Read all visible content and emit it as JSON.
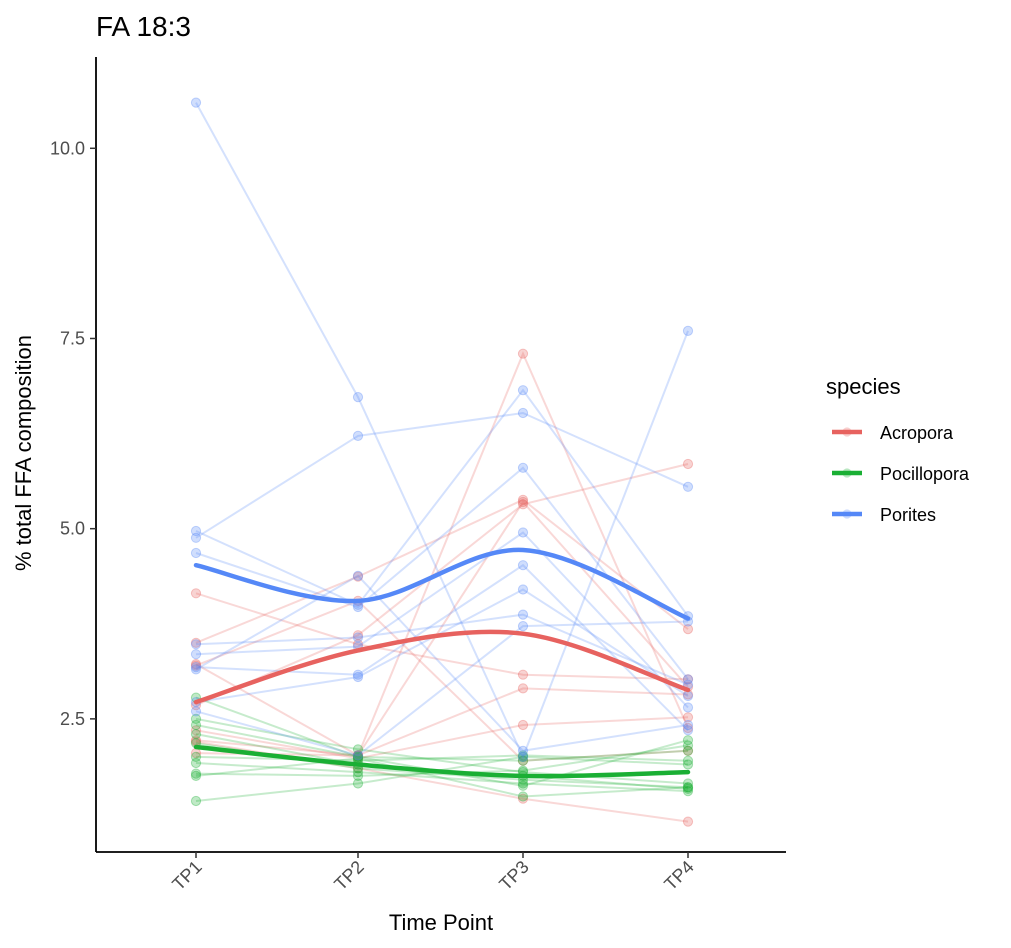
{
  "chart_data": {
    "type": "line",
    "title": "FA 18:3",
    "xlabel": "Time Point",
    "ylabel": "% total FFA composition",
    "categories": [
      "TP1",
      "TP2",
      "TP3",
      "TP4"
    ],
    "x_tick_labels": [
      "TP1",
      "TP2",
      "TP3",
      "TP4"
    ],
    "y_ticks": [
      2.5,
      5.0,
      7.5,
      10.0
    ],
    "y_tick_labels": [
      "2.5",
      "5.0",
      "7.5",
      "10.0"
    ],
    "ylim": [
      0.75,
      11.2
    ],
    "grid": false,
    "legend": {
      "title": "species",
      "position": "right"
    },
    "series": [
      {
        "name": "Acropora",
        "color": "#E7625F",
        "smooth": [
          2.72,
          3.4,
          3.62,
          2.88
        ],
        "individuals": [
          [
            3.22,
            2.02,
            5.35,
            2.92
          ],
          [
            3.5,
            4.37,
            5.38,
            3.68
          ],
          [
            4.15,
            3.48,
            3.08,
            3.02
          ],
          [
            2.22,
            2.02,
            2.9,
            2.82
          ],
          [
            2.05,
            2.02,
            7.3,
            2.38
          ],
          [
            2.35,
            1.98,
            2.42,
            2.52
          ],
          [
            3.2,
            4.05,
            1.95,
            2.08
          ],
          [
            2.2,
            1.85,
            1.45,
            1.15
          ],
          [
            2.68,
            3.6,
            5.32,
            5.85
          ]
        ]
      },
      {
        "name": "Pocillopora",
        "color": "#1AAF34",
        "smooth": [
          2.13,
          1.9,
          1.75,
          1.8
        ],
        "individuals": [
          [
            2.78,
            2.0,
            1.62,
            2.22
          ],
          [
            2.5,
            2.1,
            1.8,
            1.65
          ],
          [
            2.42,
            2.0,
            1.95,
            2.08
          ],
          [
            2.3,
            1.9,
            1.75,
            1.58
          ],
          [
            2.18,
            1.85,
            1.7,
            1.6
          ],
          [
            2.0,
            1.95,
            2.02,
            1.95
          ],
          [
            1.92,
            1.8,
            1.65,
            1.55
          ],
          [
            1.78,
            1.75,
            1.82,
            2.15
          ],
          [
            1.75,
            1.98,
            1.48,
            1.6
          ],
          [
            1.42,
            1.65,
            2.0,
            1.9
          ]
        ]
      },
      {
        "name": "Porites",
        "color": "#5588F7",
        "smooth": [
          4.52,
          4.05,
          4.72,
          3.82
        ],
        "individuals": [
          [
            10.6,
            6.73,
            2.0,
            7.6
          ],
          [
            4.97,
            4.0,
            6.82,
            3.85
          ],
          [
            4.88,
            6.22,
            6.52,
            5.55
          ],
          [
            4.68,
            3.97,
            5.8,
            3.02
          ],
          [
            3.48,
            3.57,
            3.87,
            2.95
          ],
          [
            3.35,
            3.45,
            4.95,
            2.65
          ],
          [
            3.18,
            3.08,
            4.52,
            2.35
          ],
          [
            2.72,
            3.05,
            4.2,
            2.8
          ],
          [
            2.6,
            2.02,
            3.72,
            3.78
          ],
          [
            3.15,
            4.38,
            2.08,
            2.42
          ]
        ]
      }
    ]
  }
}
